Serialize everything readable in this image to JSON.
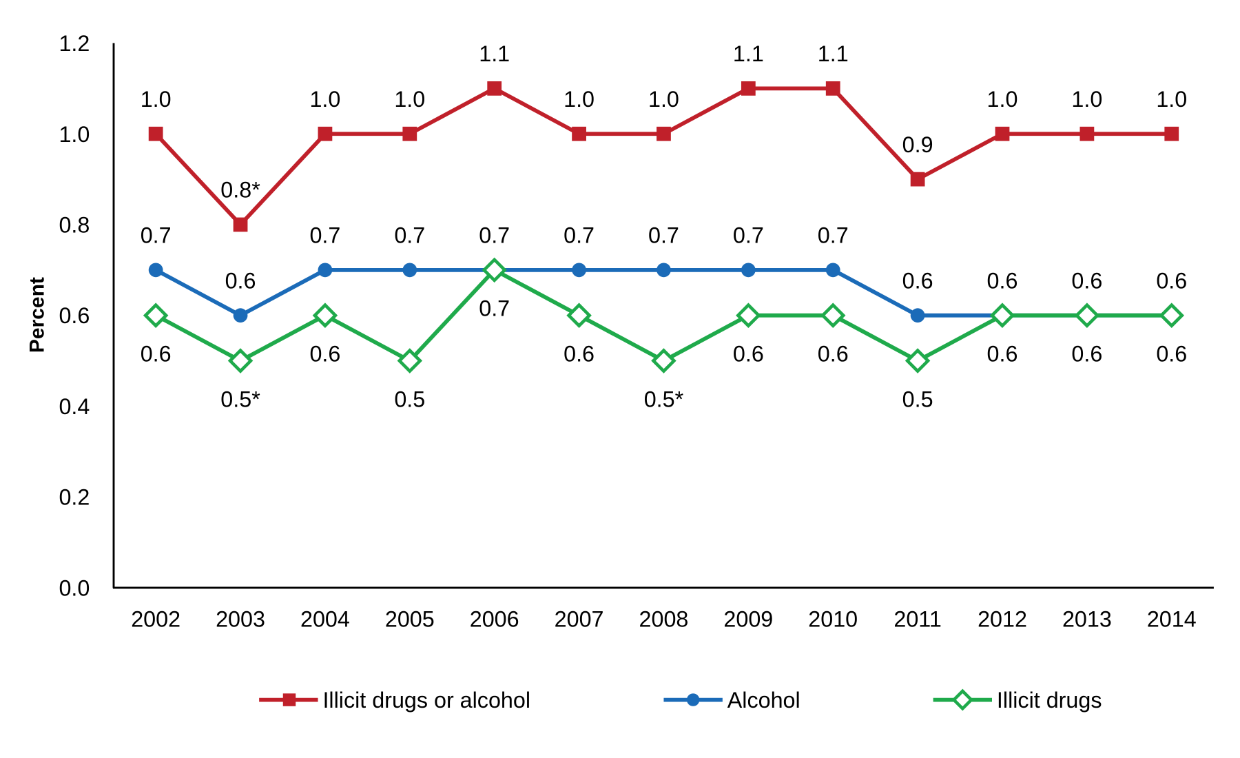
{
  "chart_data": {
    "type": "line",
    "xlabel": "",
    "ylabel": "Percent",
    "ylim": [
      0,
      1.2
    ],
    "yticks": [
      "0.0",
      "0.2",
      "0.4",
      "0.6",
      "0.8",
      "1.0",
      "1.2"
    ],
    "grid": false,
    "legend_position": "bottom",
    "categories": [
      "2002",
      "2003",
      "2004",
      "2005",
      "2006",
      "2007",
      "2008",
      "2009",
      "2010",
      "2011",
      "2012",
      "2013",
      "2014"
    ],
    "series": [
      {
        "name": "Illicit drugs or alcohol",
        "color": "#c0202a",
        "marker": "square",
        "label_position": "above",
        "values": [
          1.0,
          0.8,
          1.0,
          1.0,
          1.1,
          1.0,
          1.0,
          1.1,
          1.1,
          0.9,
          1.0,
          1.0,
          1.0
        ],
        "labels": [
          "1.0",
          "0.8*",
          "1.0",
          "1.0",
          "1.1",
          "1.0",
          "1.0",
          "1.1",
          "1.1",
          "0.9",
          "1.0",
          "1.0",
          "1.0"
        ]
      },
      {
        "name": "Alcohol",
        "color": "#1b6bb8",
        "marker": "circle",
        "label_position": "above",
        "values": [
          0.7,
          0.6,
          0.7,
          0.7,
          0.7,
          0.7,
          0.7,
          0.7,
          0.7,
          0.6,
          0.6,
          0.6,
          0.6
        ],
        "labels": [
          "0.7",
          "0.6",
          "0.7",
          "0.7",
          "0.7",
          "0.7",
          "0.7",
          "0.7",
          "0.7",
          "0.6",
          "0.6",
          "0.6",
          "0.6"
        ]
      },
      {
        "name": "Illicit drugs",
        "color": "#1faa4b",
        "marker": "diamond-open",
        "label_position": "below",
        "values": [
          0.6,
          0.5,
          0.6,
          0.5,
          0.7,
          0.6,
          0.5,
          0.6,
          0.6,
          0.5,
          0.6,
          0.6,
          0.6
        ],
        "labels": [
          "0.6",
          "0.5*",
          "0.6",
          "0.5",
          "0.7",
          "0.6",
          "0.5*",
          "0.6",
          "0.6",
          "0.5",
          "0.6",
          "0.6",
          "0.6"
        ]
      }
    ]
  }
}
